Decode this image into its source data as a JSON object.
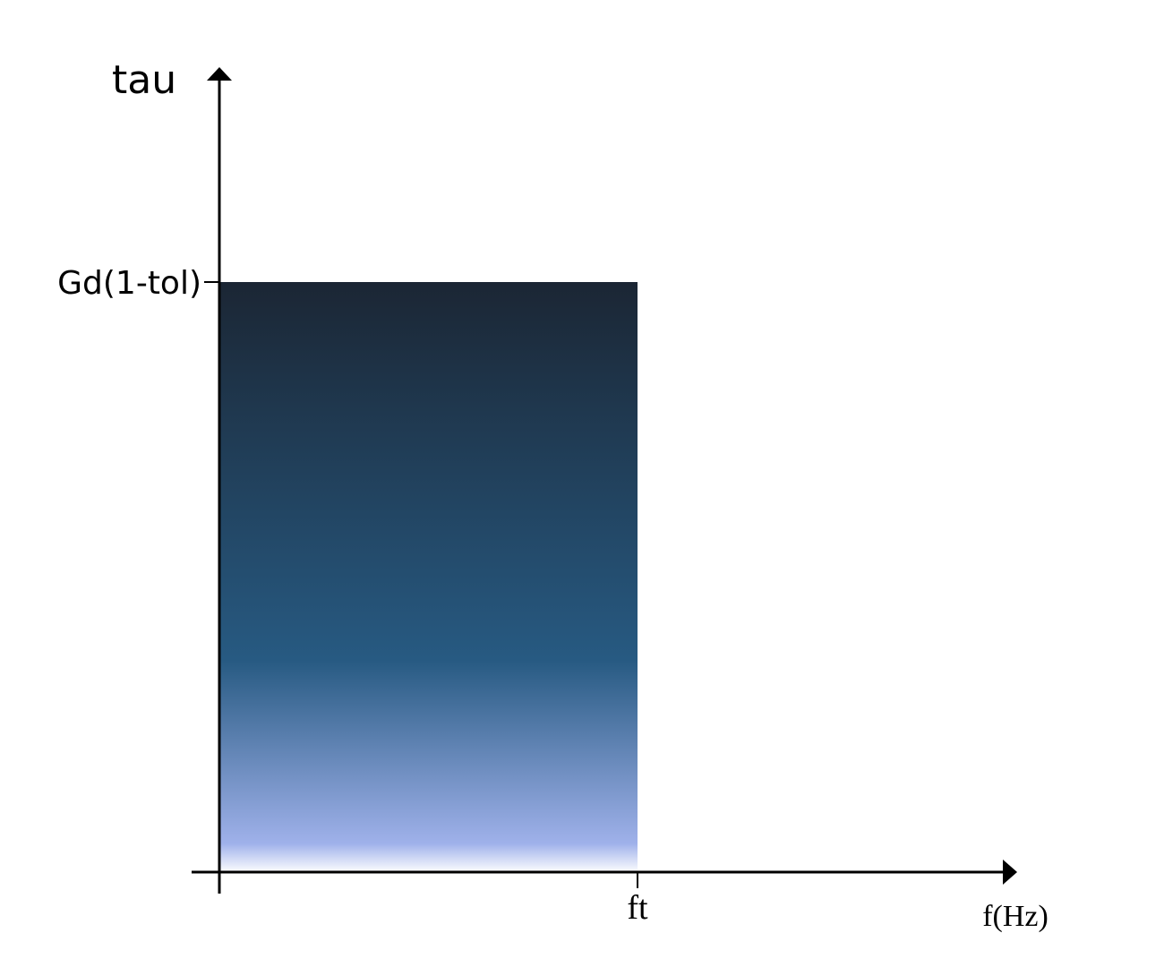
{
  "y_axis": {
    "label": "tau",
    "tick_label": "Gd(1-tol)"
  },
  "x_axis": {
    "label": "f(Hz)",
    "tick_label": "ft"
  },
  "region": {
    "description_color_top": "#1b2634",
    "color_mid": "#275a82",
    "color_bottom": "#9fb1ea",
    "color_edge": "#ffffff"
  },
  "axis_color": "#000000"
}
